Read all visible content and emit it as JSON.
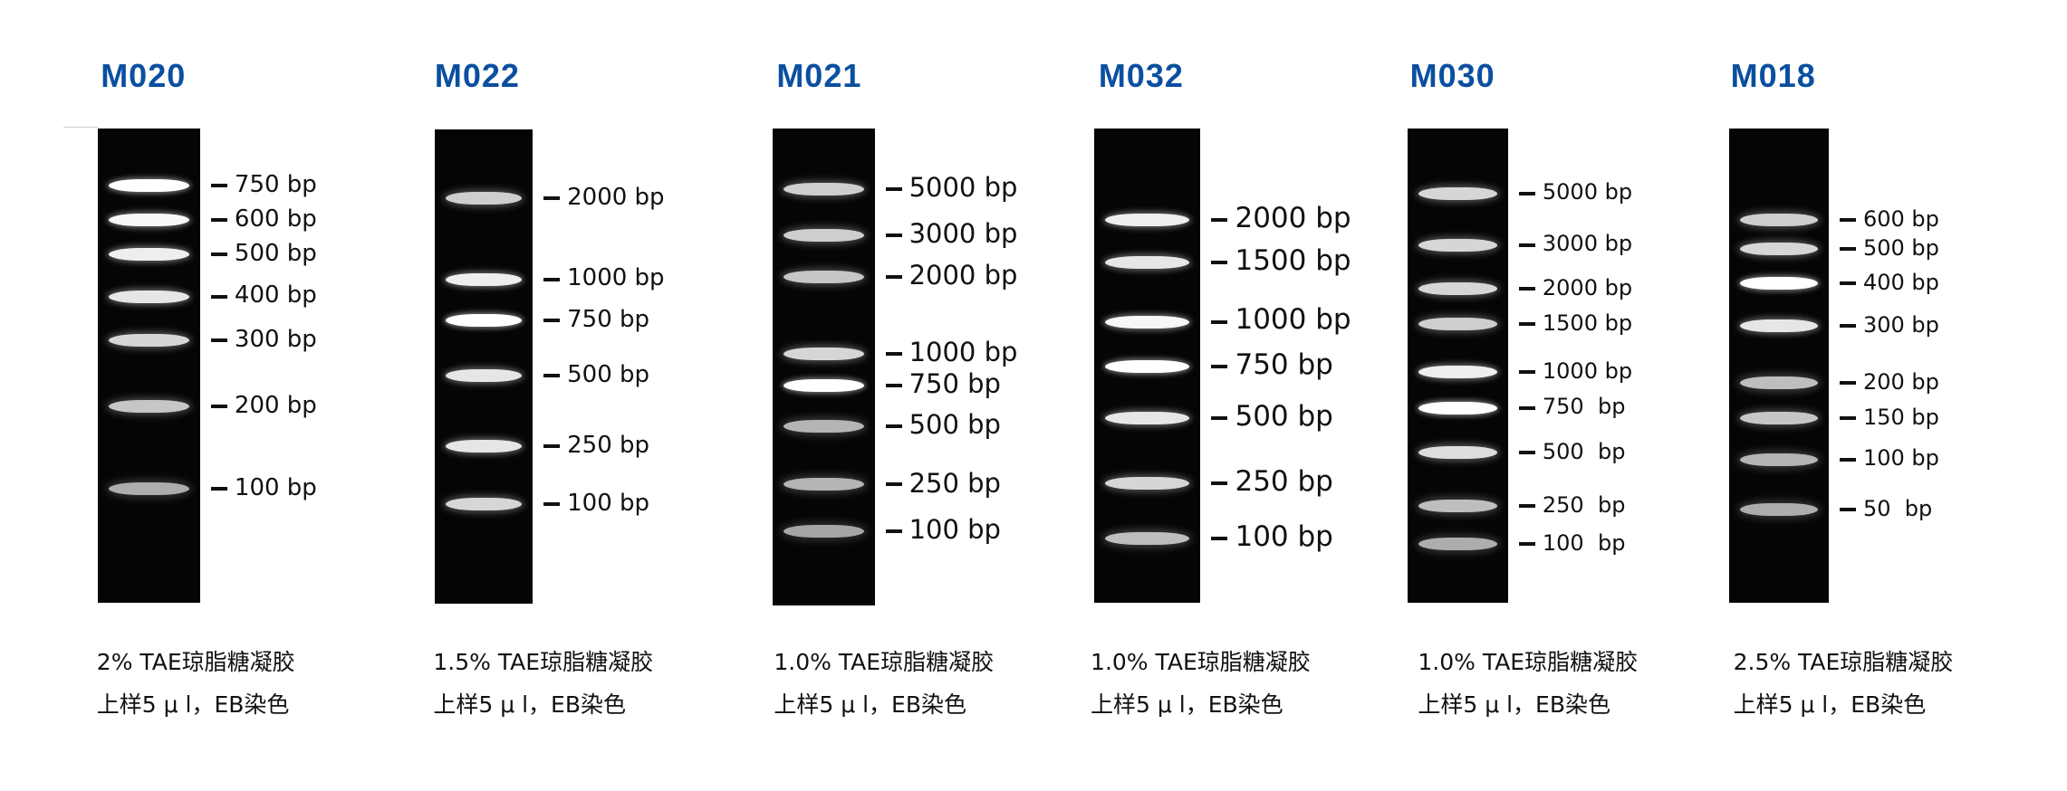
{
  "panels": [
    {
      "title": "M020",
      "labels": [
        "750 bp",
        "600 bp",
        "500 bp",
        "400 bp",
        "300 bp",
        "200 bp",
        "100 bp"
      ],
      "caption1": "2% TAE琼脂糖凝胶",
      "caption2": "上样5 μ l，EB染色"
    },
    {
      "title": "M022",
      "labels": [
        "2000 bp",
        "1000 bp",
        "750 bp",
        "500 bp",
        "250 bp",
        "100 bp"
      ],
      "caption1": "1.5% TAE琼脂糖凝胶",
      "caption2": "上样5 μ l，EB染色"
    },
    {
      "title": "M021",
      "labels": [
        "5000 bp",
        "3000 bp",
        "2000 bp",
        "1000 bp",
        "750 bp",
        "500 bp",
        "250 bp",
        "100 bp"
      ],
      "caption1": "1.0% TAE琼脂糖凝胶",
      "caption2": "上样5 μ l，EB染色"
    },
    {
      "title": "M032",
      "labels": [
        "2000 bp",
        "1500 bp",
        "1000 bp",
        "750 bp",
        "500 bp",
        "250 bp",
        "100 bp"
      ],
      "caption1": "1.0% TAE琼脂糖凝胶",
      "caption2": "上样5 μ l，EB染色"
    },
    {
      "title": "M030",
      "labels": [
        "5000 bp",
        "3000 bp",
        "2000 bp",
        "1500 bp",
        "1000 bp",
        "750  bp",
        "500  bp",
        "250  bp",
        "100  bp"
      ],
      "caption1": "1.0% TAE琼脂糖凝胶",
      "caption2": "上样5 μ l，EB染色"
    },
    {
      "title": "M018",
      "labels": [
        "600 bp",
        "500 bp",
        "400 bp",
        "300 bp",
        "200 bp",
        "150 bp",
        "100 bp",
        "50  bp"
      ],
      "caption1": "2.5% TAE琼脂糖凝胶",
      "caption2": "上样5 μ l，EB染色"
    }
  ],
  "colors": {
    "title": "#0b4fa0",
    "gel": "#050505",
    "band": "#ffffff",
    "text": "#111111"
  }
}
